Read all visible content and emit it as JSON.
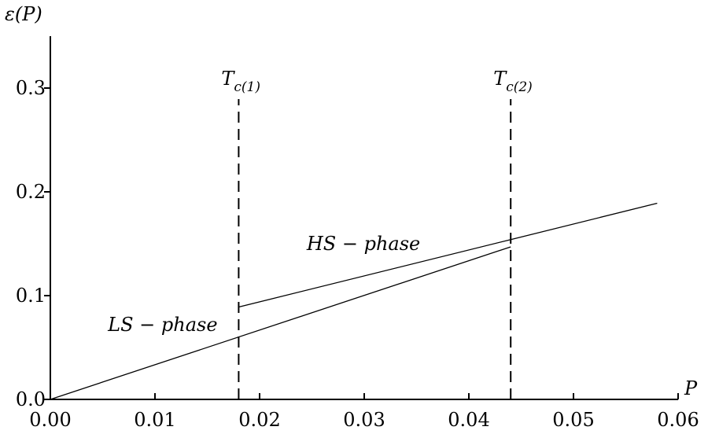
{
  "chart_data": {
    "type": "line",
    "title": "",
    "xlabel": "P",
    "ylabel": "ε(P)",
    "xlim": [
      0.0,
      0.06
    ],
    "ylim": [
      0.0,
      0.35
    ],
    "grid": false,
    "x_ticks": [
      "0.00",
      "0.01",
      "0.02",
      "0.03",
      "0.04",
      "0.05",
      "0.06"
    ],
    "y_ticks": [
      "0.0",
      "0.1",
      "0.2",
      "0.3"
    ],
    "series": [
      {
        "name": "LS − phase",
        "x": [
          0.0,
          0.044
        ],
        "y": [
          0.0,
          0.147
        ]
      },
      {
        "name": "HS − phase",
        "x": [
          0.018,
          0.044,
          0.058
        ],
        "y": [
          0.089,
          0.154,
          0.189
        ]
      }
    ],
    "vertical_lines": [
      {
        "label": "T",
        "sub": "c(1)",
        "x": 0.018,
        "y_range": [
          0.0,
          0.3
        ]
      },
      {
        "label": "T",
        "sub": "c(2)",
        "x": 0.044,
        "y_range": [
          0.0,
          0.3
        ]
      }
    ],
    "annotations": [
      {
        "text": "HS − phase",
        "x": 0.0245,
        "y": 0.144
      },
      {
        "text": "LS − phase",
        "x": 0.0055,
        "y": 0.066
      }
    ]
  }
}
